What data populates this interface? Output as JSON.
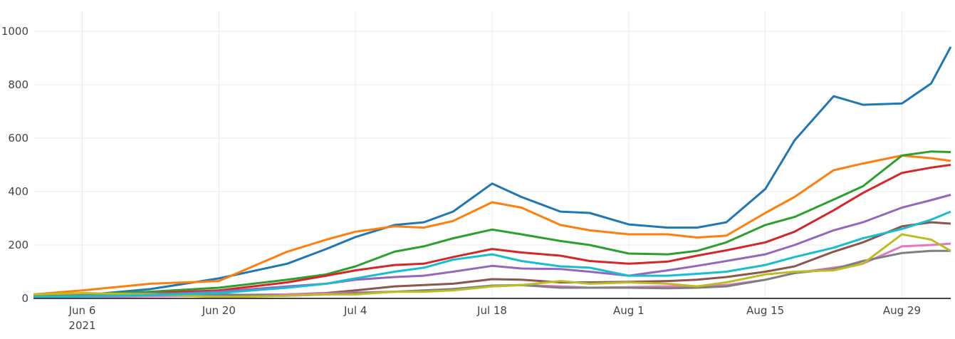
{
  "chart_data": {
    "type": "line",
    "title": "",
    "xlabel": "",
    "ylabel": "",
    "xlim": [
      "2021-06-01",
      "2021-09-03"
    ],
    "ylim": [
      0,
      1050
    ],
    "grid": true,
    "legend": "none",
    "x_ticks": [
      {
        "date": "2021-06-06",
        "label": "Jun 6",
        "sublabel": "2021"
      },
      {
        "date": "2021-06-20",
        "label": "Jun 20"
      },
      {
        "date": "2021-07-04",
        "label": "Jul 4"
      },
      {
        "date": "2021-07-18",
        "label": "Jul 18"
      },
      {
        "date": "2021-08-01",
        "label": "Aug 1"
      },
      {
        "date": "2021-08-15",
        "label": "Aug 15"
      },
      {
        "date": "2021-08-29",
        "label": "Aug 29"
      }
    ],
    "y_ticks": [
      0,
      200,
      400,
      600,
      800,
      1000
    ],
    "x": [
      "2021-06-01",
      "2021-06-06",
      "2021-06-13",
      "2021-06-20",
      "2021-06-27",
      "2021-07-01",
      "2021-07-04",
      "2021-07-08",
      "2021-07-11",
      "2021-07-14",
      "2021-07-18",
      "2021-07-21",
      "2021-07-25",
      "2021-07-28",
      "2021-08-01",
      "2021-08-05",
      "2021-08-08",
      "2021-08-11",
      "2021-08-15",
      "2021-08-18",
      "2021-08-22",
      "2021-08-25",
      "2021-08-29",
      "2021-09-01",
      "2021-09-03"
    ],
    "series": [
      {
        "color": "#1f77b4",
        "values": [
          10,
          12,
          35,
          75,
          130,
          185,
          230,
          275,
          285,
          325,
          430,
          380,
          325,
          320,
          277,
          265,
          265,
          285,
          410,
          592,
          757,
          725,
          730,
          805,
          942
        ]
      },
      {
        "color": "#ff7f0e",
        "values": [
          15,
          30,
          55,
          65,
          175,
          220,
          250,
          270,
          265,
          290,
          360,
          340,
          275,
          255,
          240,
          240,
          228,
          235,
          320,
          380,
          480,
          505,
          535,
          525,
          515
        ]
      },
      {
        "color": "#2ca02c",
        "values": [
          10,
          15,
          25,
          40,
          70,
          90,
          120,
          175,
          195,
          225,
          258,
          240,
          215,
          200,
          168,
          165,
          178,
          210,
          275,
          305,
          370,
          420,
          535,
          550,
          548
        ]
      },
      {
        "color": "#d62728",
        "values": [
          5,
          10,
          20,
          30,
          60,
          85,
          105,
          125,
          130,
          155,
          185,
          172,
          160,
          140,
          130,
          138,
          160,
          180,
          210,
          250,
          330,
          395,
          470,
          490,
          500
        ]
      },
      {
        "color": "#9467bd",
        "values": [
          5,
          8,
          15,
          25,
          45,
          55,
          70,
          80,
          85,
          100,
          122,
          112,
          110,
          100,
          85,
          105,
          122,
          140,
          165,
          200,
          255,
          285,
          340,
          368,
          388
        ]
      },
      {
        "color": "#8c564b",
        "values": [
          5,
          5,
          10,
          12,
          15,
          20,
          30,
          45,
          50,
          55,
          72,
          70,
          60,
          60,
          62,
          65,
          70,
          80,
          100,
          120,
          175,
          210,
          270,
          285,
          280
        ]
      },
      {
        "color": "#e377c2",
        "values": [
          5,
          5,
          8,
          10,
          15,
          18,
          22,
          25,
          28,
          35,
          45,
          50,
          45,
          40,
          42,
          45,
          45,
          50,
          70,
          95,
          115,
          130,
          195,
          200,
          205
        ]
      },
      {
        "color": "#7f7f7f",
        "values": [
          10,
          15,
          20,
          15,
          10,
          15,
          20,
          25,
          30,
          35,
          48,
          50,
          40,
          40,
          40,
          38,
          40,
          45,
          70,
          95,
          110,
          140,
          170,
          178,
          178
        ]
      },
      {
        "color": "#bcbd22",
        "values": [
          15,
          20,
          15,
          5,
          10,
          15,
          15,
          25,
          25,
          30,
          45,
          50,
          65,
          55,
          60,
          55,
          45,
          60,
          90,
          100,
          105,
          130,
          240,
          220,
          178
        ]
      },
      {
        "color": "#17becf",
        "values": [
          5,
          8,
          12,
          20,
          40,
          55,
          75,
          100,
          115,
          145,
          165,
          140,
          120,
          115,
          85,
          85,
          92,
          100,
          125,
          155,
          190,
          225,
          260,
          295,
          325
        ]
      }
    ]
  }
}
